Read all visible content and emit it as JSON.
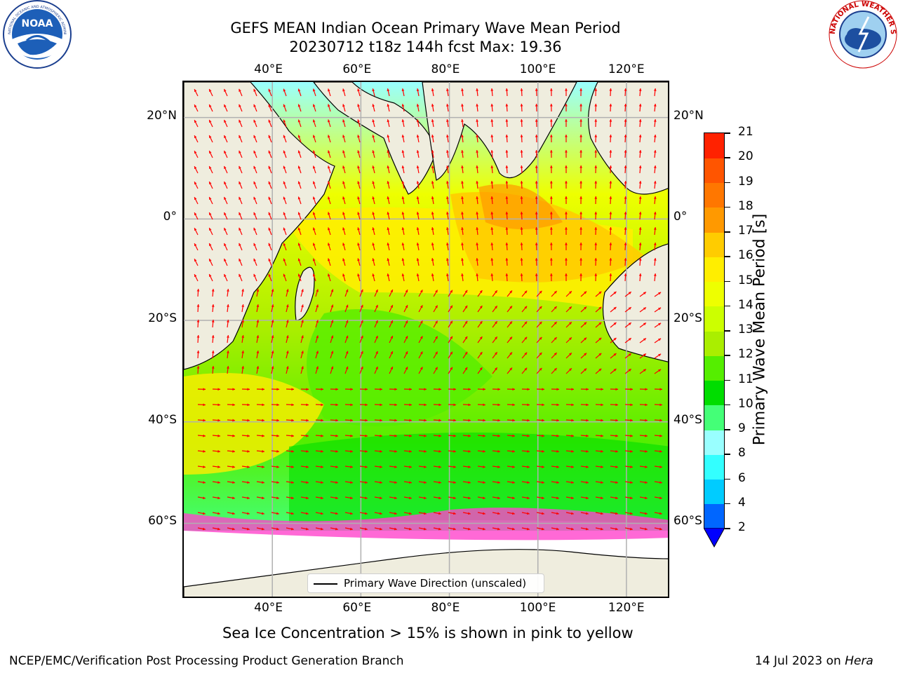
{
  "title_line1": "GEFS MEAN Indian Ocean Primary Wave Mean Period",
  "title_line2": "20230712 t18z 144h fcst   Max: 19.36",
  "logos": {
    "left": {
      "name": "noaa-logo",
      "text": "NOAA",
      "ring_text": "NATIONAL OCEANIC AND ATMOSPHERIC ADMINISTRATION · U.S. DEPARTMENT OF COMMERCE"
    },
    "right": {
      "name": "national-weather-service-logo",
      "ring_text": "NATIONAL WEATHER SERVICE"
    }
  },
  "map": {
    "lon_range": [
      20,
      130
    ],
    "lat_range": [
      -75,
      27
    ],
    "lon_ticks": [
      40,
      60,
      80,
      100,
      120
    ],
    "lat_ticks": [
      20,
      0,
      -20,
      -40,
      -60
    ],
    "lon_labels": [
      "40°E",
      "60°E",
      "80°E",
      "100°E",
      "120°E"
    ],
    "lat_labels": [
      "20°N",
      "0°",
      "20°S",
      "40°S",
      "60°S"
    ],
    "land_color": "#efedde",
    "grid_color": "#b0b0b0",
    "arrow_color": "#ff0000"
  },
  "legend_label": "Primary Wave Direction (unscaled)",
  "colorbar": {
    "label": "Primary Wave Mean Period [s]",
    "tick_labels": [
      "2",
      "4",
      "6",
      "8",
      "9",
      "10",
      "11",
      "12",
      "13",
      "14",
      "15",
      "16",
      "17",
      "18",
      "19",
      "20",
      "21"
    ],
    "colors": [
      "#0066ff",
      "#00ccff",
      "#33ffff",
      "#99ffff",
      "#44ff77",
      "#00dd00",
      "#55ee00",
      "#aaee00",
      "#ccff00",
      "#eeff00",
      "#ffee00",
      "#ffcc00",
      "#ff9900",
      "#ff7700",
      "#ff5500",
      "#ff2200"
    ],
    "extend_color": "#0000ff"
  },
  "sea_ice_note": "Sea Ice Concentration > 15% is shown in pink to yellow",
  "footer_left": "NCEP/EMC/Verification Post Processing Product Generation Branch",
  "footer_date": "14 Jul 2023 on",
  "footer_host": "Hera"
}
